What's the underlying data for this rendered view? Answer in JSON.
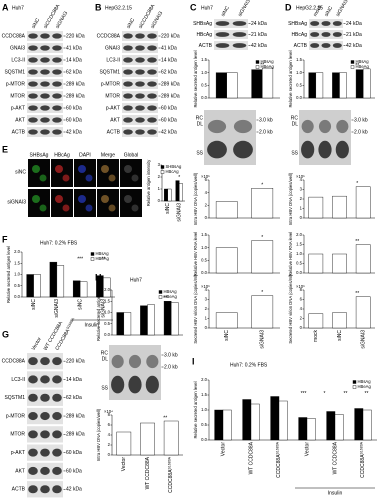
{
  "panels": [
    {
      "label": "A",
      "title": "Huh7",
      "lanes": [
        "siNC",
        "siCCDC88A",
        "siGNAI3"
      ],
      "rows": [
        {
          "name": "CCDC88A",
          "size": "220 kDa"
        },
        {
          "name": "GNAI3",
          "size": "41 kDa"
        },
        {
          "name": "LC3-II",
          "size": "14 kDa"
        },
        {
          "name": "SQSTM1",
          "size": "62 kDa"
        },
        {
          "name": "p-MTOR",
          "size": "289 kDa"
        },
        {
          "name": "MTOR",
          "size": "289 kDa"
        },
        {
          "name": "p-AKT",
          "size": "60 kDa"
        },
        {
          "name": "AKT",
          "size": "60 kDa"
        },
        {
          "name": "ACTB",
          "size": "42 kDa"
        }
      ]
    },
    {
      "label": "B",
      "title": "HepG2.2.15",
      "lanes": [
        "siNC",
        "siCCDC88A",
        "siGNAI3"
      ],
      "rows": [
        {
          "name": "CCDC88A",
          "size": "220 kDa"
        },
        {
          "name": "GNAI3",
          "size": "41 kDa"
        },
        {
          "name": "LC3-II",
          "size": "14 kDa"
        },
        {
          "name": "SQSTM1",
          "size": "62 kDa"
        },
        {
          "name": "p-MTOR",
          "size": "289 kDa"
        },
        {
          "name": "MTOR",
          "size": "289 kDa"
        },
        {
          "name": "p-AKT",
          "size": "60 kDa"
        },
        {
          "name": "AKT",
          "size": "60 kDa"
        },
        {
          "name": "ACTB",
          "size": "42 kDa"
        }
      ]
    },
    {
      "label": "C",
      "title": "Huh7",
      "lanes": [
        "siNC",
        "siGNAI3"
      ],
      "rows": [
        {
          "name": "SHBsAg",
          "size": "24 kDa"
        },
        {
          "name": "HBcAg",
          "size": "21 kDa"
        },
        {
          "name": "ACTB",
          "size": "42 kDa"
        }
      ],
      "categories": [
        "siNC",
        "siGNAI3"
      ],
      "southern": {
        "bands": [
          "RC",
          "DL",
          "SS"
        ],
        "sizes": [
          "3.0 kb",
          "2.0 kb"
        ]
      },
      "charts": [
        {
          "ylabel": "Relative secreted antigen level",
          "series": [
            {
              "name": "HBsAg",
              "color": "#000000",
              "values": [
                1.0,
                1.12
              ]
            },
            {
              "name": "HBeAg",
              "color": "#ffffff",
              "values": [
                1.0,
                1.18
              ]
            }
          ],
          "ylim": [
            0,
            1.5
          ],
          "yticks": [
            {
              "value": 0,
              "label": "0.0"
            },
            0.5,
            {
              "value": 1,
              "label": "1.0"
            },
            1.5
          ],
          "annotations": [
            "**"
          ]
        },
        {
          "ylabel": "Intra HBV DNA (copies/well)",
          "scale": "×10⁵",
          "color": "#ffffff",
          "values": [
            2.6,
            4.7
          ],
          "ylim": [
            0,
            6
          ],
          "yticks": [
            0,
            2,
            4,
            6
          ],
          "annotations": [
            "*"
          ]
        },
        {
          "ylabel": "Relative HBV RNA level",
          "color": "#ffffff",
          "values": [
            1.0,
            1.28
          ],
          "ylim": [
            0,
            1.5
          ],
          "yticks": [
            {
              "value": 0,
              "label": "0.0"
            },
            0.5,
            {
              "value": 1,
              "label": "1.0"
            },
            1.5
          ],
          "annotations": [
            "*"
          ]
        },
        {
          "ylabel": "Secreted HBV virion DNA (copies/ml)",
          "scale": "×10⁶",
          "color": "#ffffff",
          "values": [
            1.6,
            3.4
          ],
          "ylim": [
            0,
            4
          ],
          "yticks": [
            0,
            1,
            2,
            3,
            4
          ],
          "annotations": [
            "*"
          ]
        }
      ]
    },
    {
      "label": "D",
      "title": "HepG2.2.15",
      "lanes": [
        "mock",
        "siNC",
        "siGNAI3"
      ],
      "rows": [
        {
          "name": "SHBsAg",
          "size": "24 kDa"
        },
        {
          "name": "HBcAg",
          "size": "21 kDa"
        },
        {
          "name": "ACTB",
          "size": "42 kDa"
        }
      ],
      "categories": [
        "mock",
        "siNC",
        "siGNAI3"
      ],
      "southern": {
        "bands": [
          "RC",
          "DL",
          "SS"
        ],
        "sizes": [
          "3.0 kb",
          "2.0 kb"
        ]
      },
      "charts": [
        {
          "ylabel": "Relative secreted antigen level",
          "series": [
            {
              "name": "HBsAg",
              "color": "#000000",
              "values": [
                1.0,
                1.0,
                1.12
              ]
            },
            {
              "name": "HBeAg",
              "color": "#ffffff",
              "values": [
                1.0,
                1.0,
                1.15
              ]
            }
          ],
          "ylim": [
            0,
            1.5
          ],
          "yticks": [
            {
              "value": 0,
              "label": "0.0"
            },
            0.5,
            {
              "value": 1,
              "label": "1.0"
            },
            1.5
          ],
          "annotations": [
            "**"
          ]
        },
        {
          "ylabel": "Intra HBV DNA (copies/well)",
          "scale": "×10⁵",
          "color": "#ffffff",
          "values": [
            2.2,
            2.3,
            3.3
          ],
          "ylim": [
            0,
            4
          ],
          "yticks": [
            0,
            1,
            2,
            3,
            4
          ],
          "annotations": [
            "*"
          ]
        },
        {
          "ylabel": "Relative HBV RNA level",
          "color": "#ffffff",
          "values": [
            1.0,
            1.0,
            1.5
          ],
          "ylim": [
            0,
            2
          ],
          "yticks": [
            {
              "value": 0,
              "label": "0.0"
            },
            0.5,
            {
              "value": 1,
              "label": "1.0"
            },
            1.5,
            {
              "value": 2,
              "label": "2.0"
            }
          ],
          "annotations": [
            "**"
          ]
        },
        {
          "ylabel": "Secreted HBV virion DNA (copies/ml)",
          "scale": "×10⁶",
          "color": "#ffffff",
          "values": [
            3.0,
            3.2,
            6.6
          ],
          "ylim": [
            0,
            8
          ],
          "yticks": [
            0,
            2,
            4,
            6,
            8
          ],
          "annotations": [
            "**"
          ]
        }
      ]
    },
    {
      "label": "E",
      "image_columns": [
        "SHBsAg",
        "HBcAg",
        "DAPI",
        "Merge",
        "Global"
      ],
      "image_rows": [
        "siNC",
        "siGNAI3"
      ],
      "categories": [
        "siNC",
        "siGNAI3"
      ],
      "charts": [
        {
          "ylabel": "Relative antigen intensity",
          "series": [
            {
              "name": "SHBsAg",
              "color": "#000000",
              "values": [
                1.0,
                1.7
              ]
            },
            {
              "name": "HBcAg",
              "color": "#ffffff",
              "values": [
                1.0,
                1.45
              ]
            }
          ],
          "ylim": [
            0,
            3
          ],
          "yticks": [
            0,
            1,
            2,
            3
          ],
          "annotations": [
            "*"
          ]
        }
      ]
    },
    {
      "label": "F",
      "title": "Huh7: 0.2% FBS",
      "categories": [
        "siNC",
        "siGNAI3",
        "siNC",
        "siGNAI3"
      ],
      "group_label": "Insulin",
      "charts": [
        {
          "ylabel": "Relative secreted antigen level",
          "series": [
            {
              "name": "HBsAg",
              "color": "#000000",
              "values": [
                1.0,
                1.55,
                0.72,
                0.95
              ]
            },
            {
              "name": "HBeAg",
              "color": "#ffffff",
              "values": [
                1.0,
                1.4,
                0.68,
                0.85
              ]
            }
          ],
          "ylim": [
            0,
            2
          ],
          "yticks": [
            {
              "value": 0,
              "label": "0.0"
            },
            0.5,
            {
              "value": 1,
              "label": "1.0"
            },
            1.5,
            {
              "value": 2,
              "label": "2.0"
            }
          ],
          "annotations": [
            "***",
            "**"
          ]
        }
      ]
    },
    {
      "label": "G",
      "lanes": [
        "Vector",
        "WT CCDC88A",
        {
          "text": "CCDC88A",
          "sup": "S1689A"
        }
      ],
      "rows": [
        {
          "name": "CCDC88A",
          "size": "220 kDa"
        },
        {
          "name": "LC3-II",
          "size": "14 kDa"
        },
        {
          "name": "SQSTM1",
          "size": "62 kDa"
        },
        {
          "name": "p-MTOR",
          "size": "289 kDa"
        },
        {
          "name": "MTOR",
          "size": "289 kDa"
        },
        {
          "name": "p-AKT",
          "size": "60 kDa"
        },
        {
          "name": "AKT",
          "size": "60 kDa"
        },
        {
          "name": "ACTB",
          "size": "42 kDa"
        }
      ]
    },
    {
      "label": "H",
      "title": "Huh7",
      "categories": [
        "Vector",
        "WT CCDC88A",
        {
          "text": "CCDC88A",
          "sup": "S1689A"
        }
      ],
      "southern": {
        "bands": [
          "RC",
          "DL",
          "SS"
        ],
        "sizes": [
          "3.0 kb",
          "2.0 kb"
        ]
      },
      "charts": [
        {
          "ylabel": "Relative secreted antigen level",
          "series": [
            {
              "name": "HBsAg",
              "color": "#000000",
              "values": [
                1.0,
                1.3,
                1.5
              ]
            },
            {
              "name": "HBeAg",
              "color": "#ffffff",
              "values": [
                1.0,
                1.35,
                1.45
              ]
            }
          ],
          "ylim": [
            0,
            2
          ],
          "yticks": [
            {
              "value": 0,
              "label": "0.0"
            },
            0.5,
            {
              "value": 1,
              "label": "1.0"
            },
            1.5,
            {
              "value": 2,
              "label": "2.0"
            }
          ],
          "annotations": [
            "**"
          ]
        },
        {
          "ylabel": "Intra HBV DNA (copies/well)",
          "scale": "×10⁴",
          "color": "#ffffff",
          "values": [
            4.6,
            6.4,
            6.8
          ],
          "ylim": [
            0,
            8
          ],
          "yticks": [
            0,
            2,
            4,
            6,
            8
          ],
          "annotations": [
            "**"
          ]
        }
      ]
    },
    {
      "label": "I",
      "title": "Huh7: 0.2% FBS",
      "categories": [
        "Vector",
        "WT CCDC88A",
        {
          "text": "CCDC88A",
          "sup": "S1689A"
        },
        "Vector",
        "WT CCDC88A",
        {
          "text": "CCDC88A",
          "sup": "S1689A"
        }
      ],
      "group_label": "Insulin",
      "charts": [
        {
          "ylabel": "Relative secreted antigen level",
          "series": [
            {
              "name": "HBsAg",
              "color": "#000000",
              "values": [
                1.0,
                1.35,
                1.45,
                0.75,
                0.95,
                1.05
              ]
            },
            {
              "name": "HBeAg",
              "color": "#ffffff",
              "values": [
                1.0,
                1.2,
                1.3,
                0.72,
                0.85,
                1.0
              ]
            }
          ],
          "ylim": [
            0,
            2
          ],
          "yticks": [
            {
              "value": 0,
              "label": "0.0"
            },
            0.5,
            {
              "value": 1,
              "label": "1.0"
            },
            1.5,
            {
              "value": 2,
              "label": "2.0"
            }
          ],
          "annotations": [
            "***",
            "*",
            "**",
            "**"
          ]
        }
      ]
    }
  ]
}
